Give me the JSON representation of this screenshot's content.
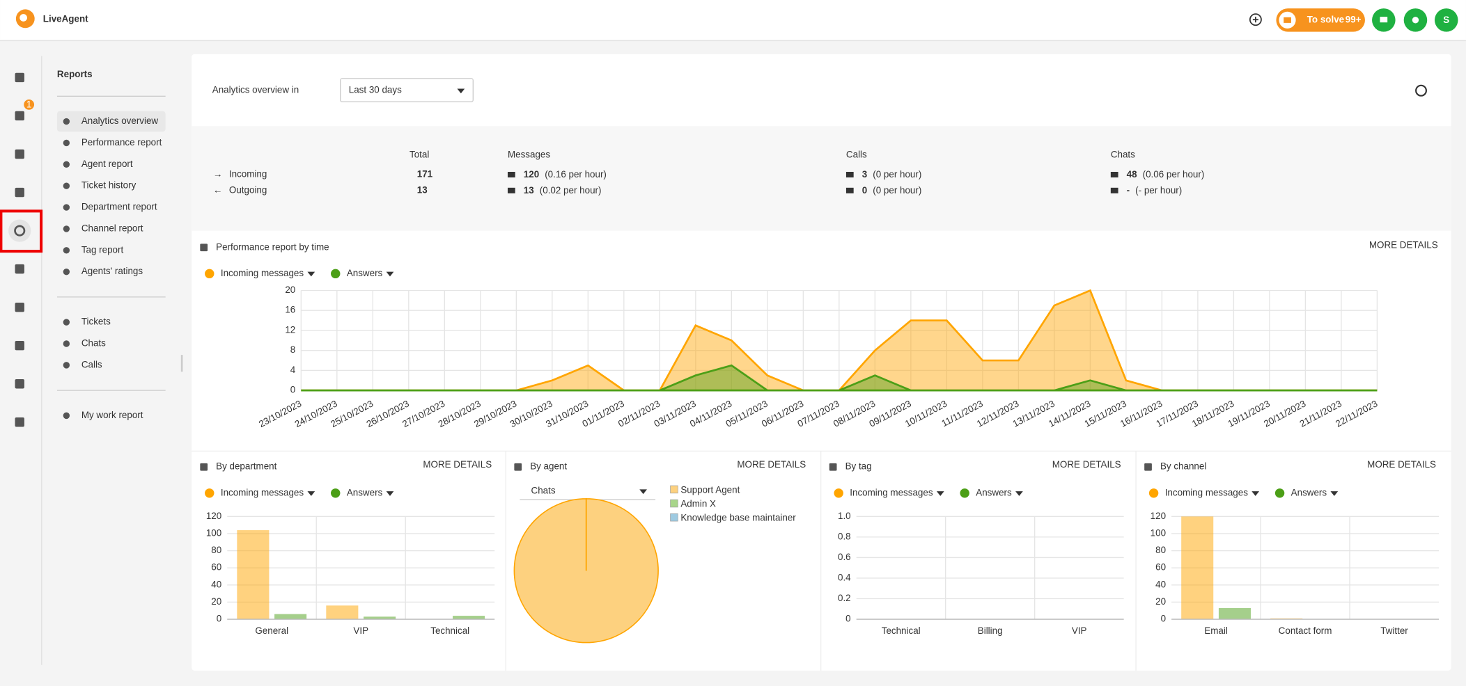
{
  "header": {
    "logo": "LiveAgent",
    "to_solve": "To solve",
    "to_solve_count": "99+",
    "avatar": "S"
  },
  "sidebar": {
    "mail_badge": 1
  },
  "menu": {
    "title": "Reports",
    "reports": [
      "Analytics overview",
      "Performance report",
      "Agent report",
      "Ticket history",
      "Department report",
      "Channel report",
      "Tag report",
      "Agents' ratings"
    ],
    "lists": [
      "Tickets",
      "Chats",
      "Calls"
    ],
    "personal": [
      "My work report"
    ]
  },
  "overview": {
    "title": "Analytics overview in",
    "period": "Last 30 days",
    "columns": {
      "total": "Total",
      "messages": "Messages",
      "calls": "Calls",
      "chats": "Chats"
    },
    "rows": [
      {
        "label": "Incoming",
        "total": 171,
        "messages": 120,
        "messages_rate": "(0.16 per hour)",
        "calls": 3,
        "calls_rate": "(0 per hour)",
        "chats": 48,
        "chats_rate": "(0.06 per hour)"
      },
      {
        "label": "Outgoing",
        "total": 13,
        "messages": 13,
        "messages_rate": "(0.02 per hour)",
        "calls": 0,
        "calls_rate": "(0 per hour)",
        "chats": "-",
        "chats_rate": "(- per hour)"
      }
    ]
  },
  "panels": [
    {
      "title": "Performance report by time",
      "more": "MORE DETAILS",
      "chart_data": {
        "type": "area",
        "categories": [
          "23/10/2023",
          "24/10/2023",
          "25/10/2023",
          "26/10/2023",
          "27/10/2023",
          "28/10/2023",
          "29/10/2023",
          "30/10/2023",
          "31/10/2023",
          "01/11/2023",
          "02/11/2023",
          "03/11/2023",
          "04/11/2023",
          "05/11/2023",
          "06/11/2023",
          "07/11/2023",
          "08/11/2023",
          "09/11/2023",
          "10/11/2023",
          "11/11/2023",
          "12/11/2023",
          "13/11/2023",
          "14/11/2023",
          "15/11/2023",
          "16/11/2023",
          "17/11/2023",
          "18/11/2023",
          "19/11/2023",
          "20/11/2023",
          "21/11/2023",
          "22/11/2023"
        ],
        "series": [
          {
            "name": "Incoming messages",
            "color": "#ffa500",
            "values": [
              0,
              0,
              0,
              0,
              0,
              0,
              0,
              2,
              5,
              0,
              0,
              13,
              10,
              3,
              0,
              0,
              8,
              14,
              14,
              6,
              6,
              17,
              20,
              2,
              0,
              0,
              0,
              0,
              0,
              0,
              0
            ]
          },
          {
            "name": "Answers",
            "color": "#4c9f17",
            "values": [
              0,
              0,
              0,
              0,
              0,
              0,
              0,
              0,
              0,
              0,
              0,
              3,
              5,
              0,
              0,
              0,
              3,
              0,
              0,
              0,
              0,
              0,
              2,
              0,
              0,
              0,
              0,
              0,
              0,
              0,
              0
            ]
          }
        ],
        "ylim": [
          0,
          20
        ],
        "yticks": [
          0,
          4,
          8,
          12,
          16,
          20
        ],
        "grid": true
      }
    },
    {
      "title": "By department",
      "more": "MORE DETAILS",
      "chart_data": {
        "type": "bar",
        "categories": [
          "General",
          "VIP",
          "Technical"
        ],
        "series": [
          {
            "name": "Incoming messages",
            "color": "#ffa500",
            "values": [
              104,
              16,
              0
            ]
          },
          {
            "name": "Answers",
            "color": "#4c9f17",
            "values": [
              6,
              3,
              4
            ]
          }
        ],
        "ylim": [
          0,
          120
        ],
        "yticks": [
          0,
          20,
          40,
          60,
          80,
          100,
          120
        ],
        "grid": true
      }
    },
    {
      "title": "By agent",
      "more": "MORE DETAILS",
      "chart_data": {
        "type": "pie",
        "filter": "Chats",
        "categories": [
          "Support Agent",
          "Admin X",
          "Knowledge base maintainer"
        ],
        "values": [
          48,
          0,
          0
        ],
        "colors": [
          "#fdd17f",
          "#a8d58a",
          "#9ecae1"
        ]
      }
    },
    {
      "title": "By tag",
      "more": "MORE DETAILS",
      "chart_data": {
        "type": "bar",
        "categories": [
          "Technical",
          "Billing",
          "VIP"
        ],
        "series": [
          {
            "name": "Incoming messages",
            "color": "#ffa500",
            "values": [
              0,
              0,
              0
            ]
          },
          {
            "name": "Answers",
            "color": "#4c9f17",
            "values": [
              0,
              0,
              0
            ]
          }
        ],
        "ylim": [
          0,
          1
        ],
        "yticks": [
          0,
          0.2,
          0.4,
          0.6,
          0.8,
          {
            "value": 1,
            "label": "1.0"
          }
        ],
        "grid": true
      }
    },
    {
      "title": "By channel",
      "more": "MORE DETAILS",
      "chart_data": {
        "type": "bar",
        "categories": [
          "Email",
          "Contact form",
          "Twitter"
        ],
        "series": [
          {
            "name": "Incoming messages",
            "color": "#ffa500",
            "values": [
              120,
              1,
              0
            ]
          },
          {
            "name": "Answers",
            "color": "#4c9f17",
            "values": [
              13,
              0,
              0
            ]
          }
        ],
        "ylim": [
          0,
          120
        ],
        "yticks": [
          0,
          20,
          40,
          60,
          80,
          100,
          120
        ],
        "grid": true
      }
    }
  ]
}
